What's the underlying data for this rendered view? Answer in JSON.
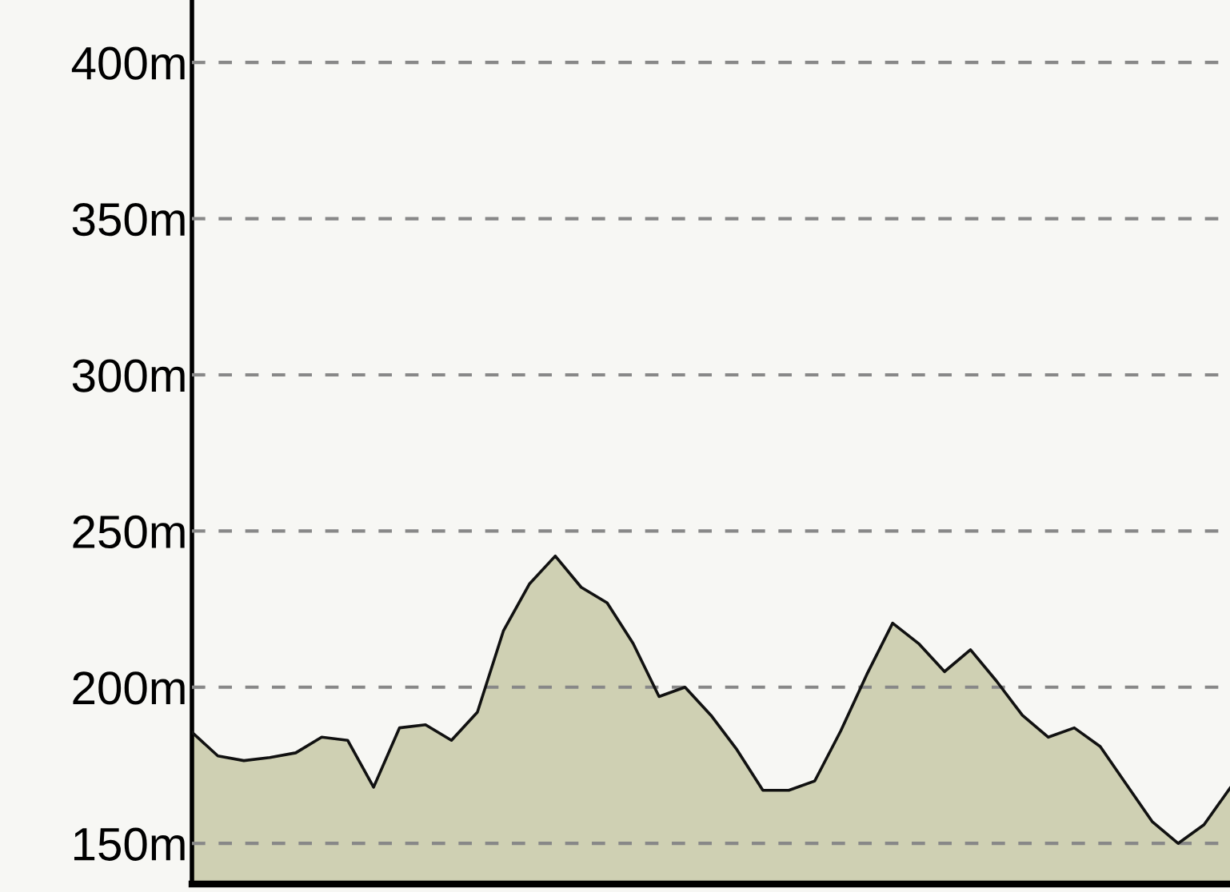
{
  "chart_data": {
    "type": "area",
    "categories": [
      null,
      null,
      null,
      null,
      null,
      null,
      null,
      null,
      null,
      null,
      null,
      null,
      null,
      null,
      null,
      null,
      null,
      null,
      null,
      null,
      null,
      null,
      null,
      null,
      null,
      null,
      null,
      null,
      null,
      null,
      null,
      null,
      null,
      null,
      null,
      null,
      null,
      null,
      null,
      null,
      null
    ],
    "series": [
      {
        "color": "#cfd0b3",
        "values": [
          185.6,
          178,
          176.5,
          177.5,
          179,
          184,
          183,
          168,
          187,
          188,
          183,
          192,
          218,
          233,
          242,
          232,
          227,
          214,
          197,
          200,
          191,
          180,
          167,
          167,
          170,
          186,
          204,
          220.5,
          214,
          205,
          212,
          202,
          191,
          184,
          187,
          181,
          169,
          157,
          150,
          156,
          167.7
        ]
      }
    ],
    "ylim": [
      137,
      420
    ],
    "yticks": [
      {
        "value": 150,
        "label": "150m"
      },
      {
        "value": 200,
        "label": "200m"
      },
      {
        "value": 250,
        "label": "250m"
      },
      {
        "value": 300,
        "label": "300m"
      },
      {
        "value": 350,
        "label": "350m"
      },
      {
        "value": 400,
        "label": "400m"
      }
    ],
    "grid": "y",
    "tick_labels": "y",
    "line_style": "solid",
    "marker": "none"
  }
}
